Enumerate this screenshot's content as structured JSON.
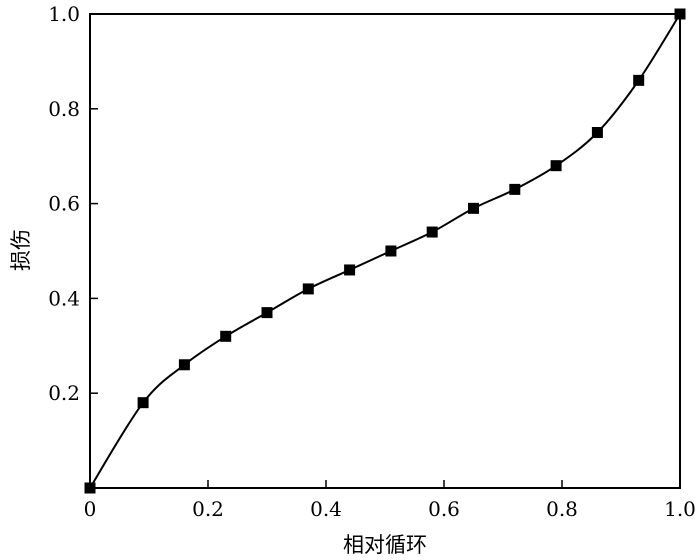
{
  "chart_data": {
    "type": "line",
    "title": "",
    "xlabel": "相对循环",
    "ylabel": "损伤",
    "xlim": [
      0,
      1.0
    ],
    "ylim": [
      0,
      1.0
    ],
    "xticks": [
      "0",
      "0.2",
      "0.4",
      "0.6",
      "0.8",
      "1.0"
    ],
    "yticks": [
      "0.2",
      "0.4",
      "0.6",
      "0.8",
      "1.0"
    ],
    "xtick_values": [
      0,
      0.2,
      0.4,
      0.6,
      0.8,
      1.0
    ],
    "ytick_values": [
      0.2,
      0.4,
      0.6,
      0.8,
      1.0
    ],
    "grid": false,
    "series": [
      {
        "marker": "square",
        "color": "#000000",
        "x": [
          0.0,
          0.09,
          0.16,
          0.23,
          0.3,
          0.37,
          0.44,
          0.51,
          0.58,
          0.65,
          0.72,
          0.79,
          0.86,
          0.93,
          1.0
        ],
        "y": [
          0.0,
          0.18,
          0.26,
          0.32,
          0.37,
          0.42,
          0.46,
          0.5,
          0.54,
          0.59,
          0.63,
          0.68,
          0.75,
          0.86,
          1.0
        ]
      }
    ]
  }
}
